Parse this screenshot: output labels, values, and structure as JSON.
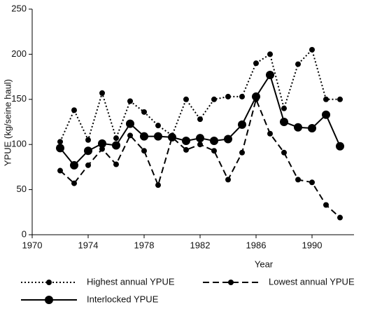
{
  "chart_data": {
    "type": "line",
    "x_label": "Year",
    "y_label": "YPUE (kg/seine haul)",
    "x": [
      1972,
      1973,
      1974,
      1975,
      1976,
      1977,
      1978,
      1979,
      1980,
      1981,
      1982,
      1983,
      1984,
      1985,
      1986,
      1987,
      1988,
      1989,
      1990,
      1991,
      1992
    ],
    "series": [
      {
        "name": "Highest annual YPUE",
        "color": "#000000",
        "style": "dotted",
        "values": [
          103,
          138,
          105,
          157,
          107,
          148,
          136,
          121,
          110,
          150,
          128,
          150,
          153,
          153,
          190,
          200,
          140,
          189,
          205,
          150,
          150
        ]
      },
      {
        "name": "Lowest annual YPUE",
        "color": "#000000",
        "style": "dashed",
        "values": [
          71,
          57,
          77,
          95,
          78,
          110,
          93,
          55,
          108,
          94,
          100,
          93,
          61,
          91,
          150,
          112,
          91,
          61,
          58,
          33,
          19
        ]
      },
      {
        "name": "Interlocked YPUE",
        "color": "#000000",
        "style": "solid",
        "values": [
          96,
          77,
          93,
          101,
          99,
          123,
          109,
          109,
          108,
          104,
          107,
          104,
          106,
          122,
          153,
          177,
          125,
          119,
          118,
          133,
          98
        ]
      }
    ],
    "xlim": [
      1970,
      1993
    ],
    "xticks": [
      1970,
      1974,
      1978,
      1982,
      1986,
      1990
    ],
    "ylim": [
      0,
      250
    ],
    "yticks": [
      0,
      50,
      100,
      150,
      200,
      250
    ],
    "grid": false
  }
}
